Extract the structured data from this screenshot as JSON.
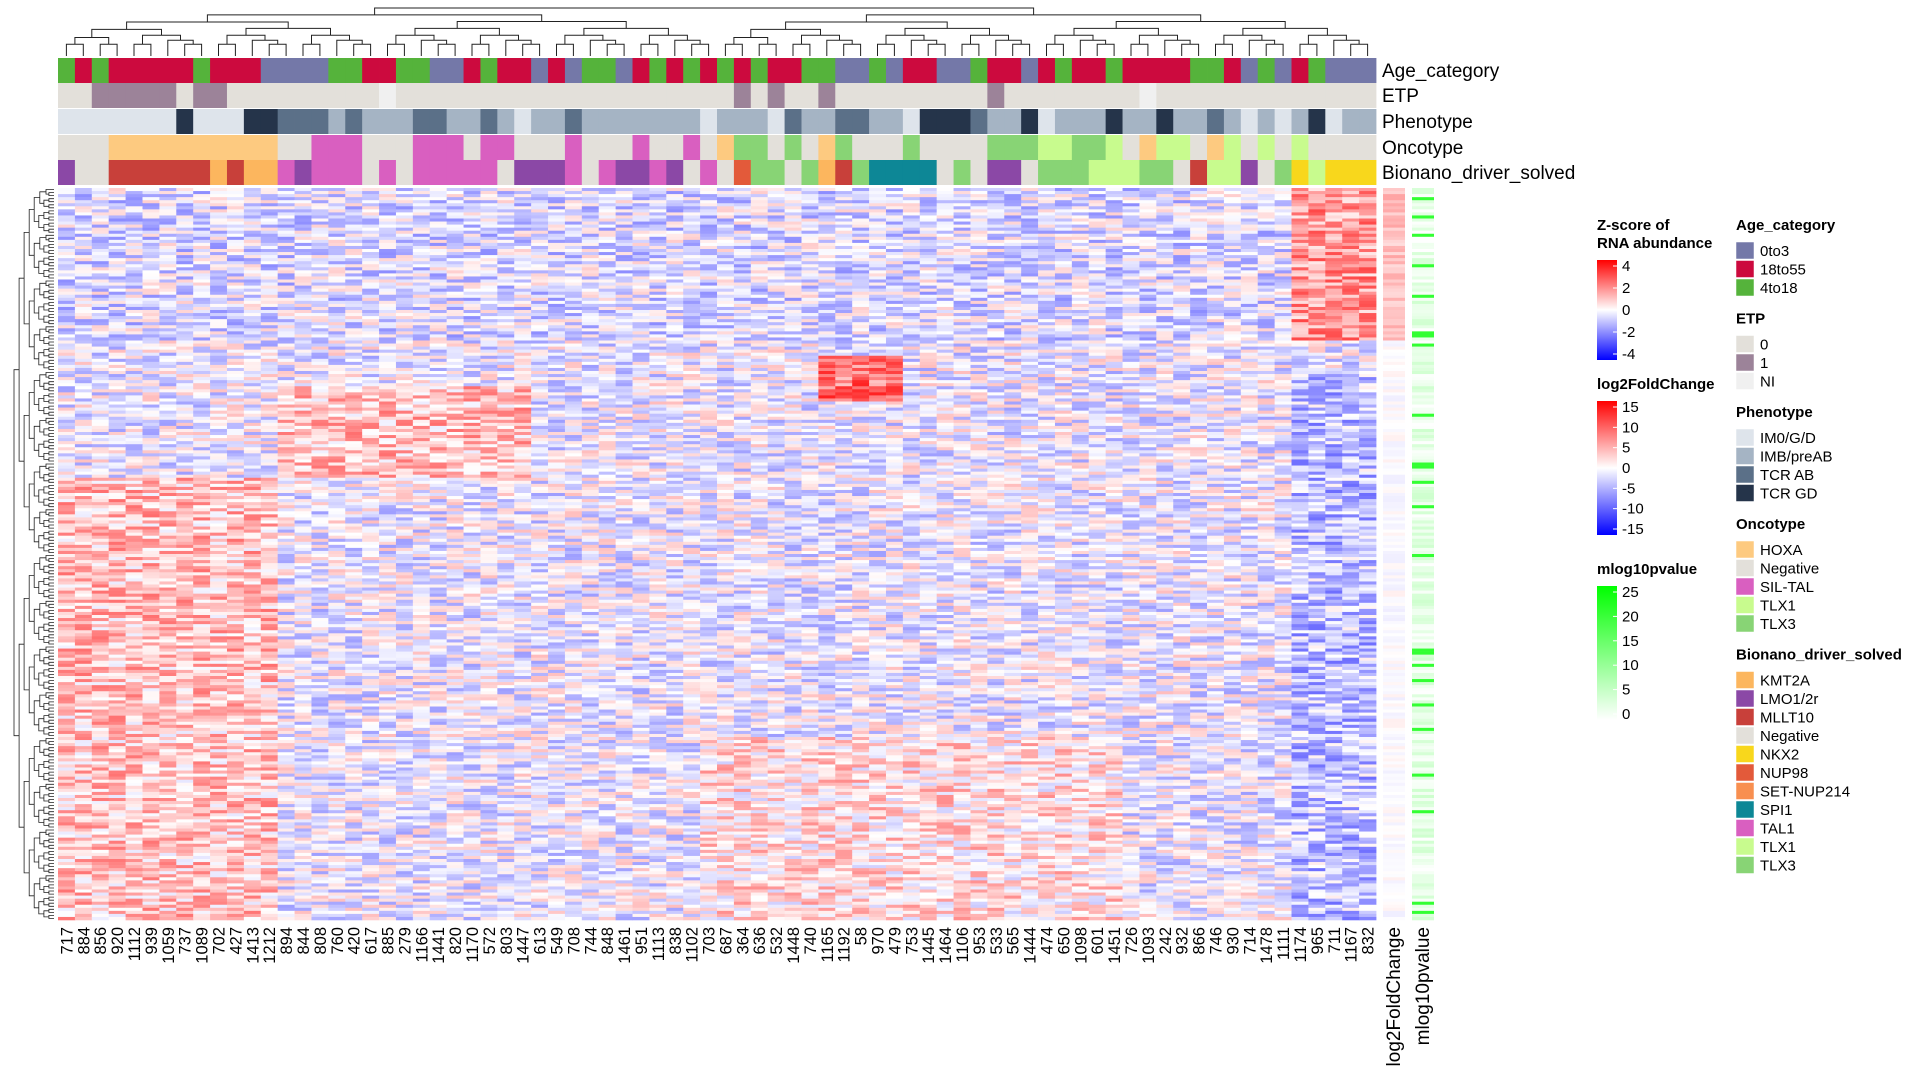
{
  "chart_data": {
    "type": "heatmap",
    "columns": [
      "717",
      "884",
      "856",
      "920",
      "1112",
      "939",
      "1059",
      "737",
      "1089",
      "702",
      "427",
      "1413",
      "1212",
      "894",
      "844",
      "808",
      "760",
      "420",
      "617",
      "885",
      "279",
      "1166",
      "1441",
      "820",
      "1170",
      "572",
      "803",
      "1447",
      "613",
      "549",
      "708",
      "744",
      "848",
      "1461",
      "951",
      "1113",
      "838",
      "1102",
      "703",
      "687",
      "364",
      "636",
      "532",
      "1448",
      "740",
      "1165",
      "1192",
      "58",
      "970",
      "479",
      "753",
      "1445",
      "1464",
      "1106",
      "953",
      "533",
      "565",
      "1444",
      "474",
      "650",
      "1098",
      "601",
      "1451",
      "726",
      "1093",
      "242",
      "932",
      "866",
      "746",
      "930",
      "714",
      "1478",
      "1111",
      "1174",
      "965",
      "711",
      "1167",
      "832"
    ],
    "side_columns": [
      "log2FoldChange",
      "mlog10pvalue"
    ],
    "annotation_tracks": [
      "Age_category",
      "ETP",
      "Phenotype",
      "Oncotype",
      "Bionano_driver_solved"
    ],
    "annotations": {
      "Age_category": [
        "4to18",
        "18to55",
        "4to18",
        "18to55",
        "18to55",
        "18to55",
        "18to55",
        "18to55",
        "4to18",
        "18to55",
        "18to55",
        "18to55",
        "0to3",
        "0to3",
        "0to3",
        "0to3",
        "4to18",
        "4to18",
        "18to55",
        "18to55",
        "4to18",
        "4to18",
        "0to3",
        "0to3",
        "18to55",
        "4to18",
        "18to55",
        "18to55",
        "0to3",
        "18to55",
        "0to3",
        "4to18",
        "4to18",
        "0to3",
        "18to55",
        "4to18",
        "18to55",
        "4to18",
        "18to55",
        "4to18",
        "18to55",
        "4to18",
        "18to55",
        "18to55",
        "4to18",
        "4to18",
        "0to3",
        "0to3",
        "4to18",
        "0to3",
        "18to55",
        "18to55",
        "0to3",
        "0to3",
        "4to18",
        "18to55",
        "18to55",
        "0to3",
        "18to55",
        "4to18",
        "18to55",
        "18to55",
        "4to18",
        "18to55",
        "18to55",
        "18to55",
        "18to55",
        "4to18",
        "4to18",
        "18to55",
        "0to3",
        "4to18",
        "0to3",
        "18to55",
        "4to18",
        "0to3",
        "0to3",
        "0to3"
      ],
      "ETP": [
        "0",
        "0",
        "1",
        "1",
        "1",
        "1",
        "1",
        "0",
        "1",
        "1",
        "0",
        "0",
        "0",
        "0",
        "0",
        "0",
        "0",
        "0",
        "0",
        "NI",
        "0",
        "0",
        "0",
        "0",
        "0",
        "0",
        "0",
        "0",
        "0",
        "0",
        "0",
        "0",
        "0",
        "0",
        "0",
        "0",
        "0",
        "0",
        "0",
        "0",
        "1",
        "0",
        "1",
        "0",
        "0",
        "1",
        "0",
        "0",
        "0",
        "0",
        "0",
        "0",
        "0",
        "0",
        "0",
        "1",
        "0",
        "0",
        "0",
        "0",
        "0",
        "0",
        "0",
        "0",
        "NI",
        "0",
        "0",
        "0",
        "0",
        "0",
        "0",
        "0",
        "0",
        "0",
        "0",
        "0",
        "0",
        "0"
      ],
      "Phenotype": [
        "IM0/G/D",
        "IM0/G/D",
        "IM0/G/D",
        "IM0/G/D",
        "IM0/G/D",
        "IM0/G/D",
        "IM0/G/D",
        "TCR GD",
        "IM0/G/D",
        "IM0/G/D",
        "IM0/G/D",
        "TCR GD",
        "TCR GD",
        "TCR AB",
        "TCR AB",
        "TCR AB",
        "IMB/preAB",
        "TCR AB",
        "IMB/preAB",
        "IMB/preAB",
        "IMB/preAB",
        "TCR AB",
        "TCR AB",
        "IMB/preAB",
        "IMB/preAB",
        "TCR AB",
        "IMB/preAB",
        "IM0/G/D",
        "IMB/preAB",
        "IMB/preAB",
        "TCR AB",
        "IMB/preAB",
        "IMB/preAB",
        "IMB/preAB",
        "IMB/preAB",
        "IMB/preAB",
        "IMB/preAB",
        "IMB/preAB",
        "IM0/G/D",
        "IMB/preAB",
        "IMB/preAB",
        "IMB/preAB",
        "IM0/G/D",
        "TCR AB",
        "IMB/preAB",
        "IMB/preAB",
        "TCR AB",
        "TCR AB",
        "IMB/preAB",
        "IMB/preAB",
        "IM0/G/D",
        "TCR GD",
        "TCR GD",
        "TCR GD",
        "TCR AB",
        "IMB/preAB",
        "IMB/preAB",
        "TCR GD",
        "IM0/G/D",
        "IMB/preAB",
        "IMB/preAB",
        "IMB/preAB",
        "TCR GD",
        "IMB/preAB",
        "IMB/preAB",
        "TCR GD",
        "IMB/preAB",
        "IMB/preAB",
        "TCR AB",
        "IMB/preAB",
        "IM0/G/D",
        "IMB/preAB",
        "IM0/G/D",
        "IMB/preAB",
        "TCR GD",
        "IM0/G/D",
        "IMB/preAB",
        "IMB/preAB"
      ],
      "Oncotype": [
        "Negative",
        "Negative",
        "Negative",
        "HOXA",
        "HOXA",
        "HOXA",
        "HOXA",
        "HOXA",
        "HOXA",
        "HOXA",
        "HOXA",
        "HOXA",
        "HOXA",
        "Negative",
        "Negative",
        "SIL-TAL",
        "SIL-TAL",
        "SIL-TAL",
        "Negative",
        "Negative",
        "Negative",
        "SIL-TAL",
        "SIL-TAL",
        "SIL-TAL",
        "Negative",
        "SIL-TAL",
        "SIL-TAL",
        "Negative",
        "Negative",
        "Negative",
        "SIL-TAL",
        "Negative",
        "Negative",
        "Negative",
        "SIL-TAL",
        "Negative",
        "Negative",
        "SIL-TAL",
        "Negative",
        "HOXA",
        "TLX3",
        "TLX3",
        "Negative",
        "TLX3",
        "Negative",
        "HOXA",
        "TLX3",
        "Negative",
        "Negative",
        "Negative",
        "TLX3",
        "Negative",
        "Negative",
        "Negative",
        "Negative",
        "TLX3",
        "TLX3",
        "TLX3",
        "TLX1",
        "TLX1",
        "TLX3",
        "TLX3",
        "TLX1",
        "Negative",
        "HOXA",
        "TLX1",
        "TLX1",
        "Negative",
        "HOXA",
        "TLX1",
        "Negative",
        "TLX1",
        "Negative",
        "TLX1",
        "Negative",
        "Negative",
        "Negative",
        "Negative"
      ],
      "Bionano_driver_solved": [
        "LMO1/2r",
        "Negative",
        "Negative",
        "MLLT10",
        "MLLT10",
        "MLLT10",
        "MLLT10",
        "MLLT10",
        "MLLT10",
        "KMT2A",
        "MLLT10",
        "KMT2A",
        "KMT2A",
        "TAL1",
        "LMO1/2r",
        "TAL1",
        "TAL1",
        "TAL1",
        "Negative",
        "TAL1",
        "Negative",
        "TAL1",
        "TAL1",
        "TAL1",
        "TAL1",
        "TAL1",
        "Negative",
        "LMO1/2r",
        "LMO1/2r",
        "LMO1/2r",
        "TAL1",
        "Negative",
        "TAL1",
        "LMO1/2r",
        "LMO1/2r",
        "TAL1",
        "LMO1/2r",
        "Negative",
        "TAL1",
        "Negative",
        "NUP98",
        "TLX3",
        "TLX3",
        "Negative",
        "TLX3",
        "KMT2A",
        "MLLT10",
        "TLX3",
        "SPI1",
        "SPI1",
        "SPI1",
        "SPI1",
        "Negative",
        "TLX3",
        "Negative",
        "LMO1/2r",
        "LMO1/2r",
        "Negative",
        "TLX3",
        "TLX3",
        "TLX3",
        "TLX1",
        "TLX1",
        "TLX1",
        "TLX3",
        "TLX3",
        "Negative",
        "MLLT10",
        "TLX1",
        "TLX1",
        "LMO1/2r",
        "Negative",
        "TLX3",
        "NKX2",
        "TLX1",
        "NKX2",
        "NKX2",
        "NKX2"
      ]
    },
    "legends": {
      "zscore": {
        "title_line1": "Z-score of",
        "title_line2": "RNA abundance",
        "ticks": [
          4,
          2,
          0,
          -2,
          -4
        ],
        "range": [
          -4,
          4
        ],
        "colors": [
          "#0000ff",
          "#ffffff",
          "#ff0000"
        ]
      },
      "log2fc": {
        "title": "log2FoldChange",
        "ticks": [
          15,
          10,
          5,
          0,
          -5,
          -10,
          -15
        ],
        "range": [
          -15,
          15
        ],
        "colors": [
          "#0000ff",
          "#ffffff",
          "#ff0000"
        ]
      },
      "mlog10": {
        "title": "mlog10pvalue",
        "ticks": [
          25,
          20,
          15,
          10,
          5,
          0
        ],
        "range": [
          0,
          25
        ],
        "colors": [
          "#ffffff",
          "#00ff00"
        ]
      }
    },
    "categorical_legends": [
      {
        "title": "Age_category",
        "items": [
          {
            "label": "0to3",
            "color": "#7478a8"
          },
          {
            "label": "18to55",
            "color": "#cc0a3e"
          },
          {
            "label": "4to18",
            "color": "#55b33b"
          }
        ]
      },
      {
        "title": "ETP",
        "items": [
          {
            "label": "0",
            "color": "#e3e0da"
          },
          {
            "label": "1",
            "color": "#9c8399"
          },
          {
            "label": "NI",
            "color": "#f0f0f0"
          }
        ]
      },
      {
        "title": "Phenotype",
        "items": [
          {
            "label": "IM0/G/D",
            "color": "#dee4eb"
          },
          {
            "label": "IMB/preAB",
            "color": "#a5b4c4"
          },
          {
            "label": "TCR AB",
            "color": "#5b7088"
          },
          {
            "label": "TCR GD",
            "color": "#25344a"
          }
        ]
      },
      {
        "title": "Oncotype",
        "items": [
          {
            "label": "HOXA",
            "color": "#fdca80"
          },
          {
            "label": "Negative",
            "color": "#e3e0da"
          },
          {
            "label": "SIL-TAL",
            "color": "#d95fc0"
          },
          {
            "label": "TLX1",
            "color": "#c8fb8e"
          },
          {
            "label": "TLX3",
            "color": "#88d475"
          }
        ]
      },
      {
        "title": "Bionano_driver_solved",
        "items": [
          {
            "label": "KMT2A",
            "color": "#fcb65e"
          },
          {
            "label": "LMO1/2r",
            "color": "#8b48a6"
          },
          {
            "label": "MLLT10",
            "color": "#c8403a"
          },
          {
            "label": "Negative",
            "color": "#e3e0da"
          },
          {
            "label": "NKX2",
            "color": "#f8d71c"
          },
          {
            "label": "NUP98",
            "color": "#e35a3a"
          },
          {
            "label": "SET-NUP214",
            "color": "#f88f50"
          },
          {
            "label": "SPI1",
            "color": "#0d8796"
          },
          {
            "label": "TAL1",
            "color": "#d95fc0"
          },
          {
            "label": "TLX1",
            "color": "#c8fb8e"
          },
          {
            "label": "TLX3",
            "color": "#88d475"
          }
        ]
      }
    ]
  }
}
